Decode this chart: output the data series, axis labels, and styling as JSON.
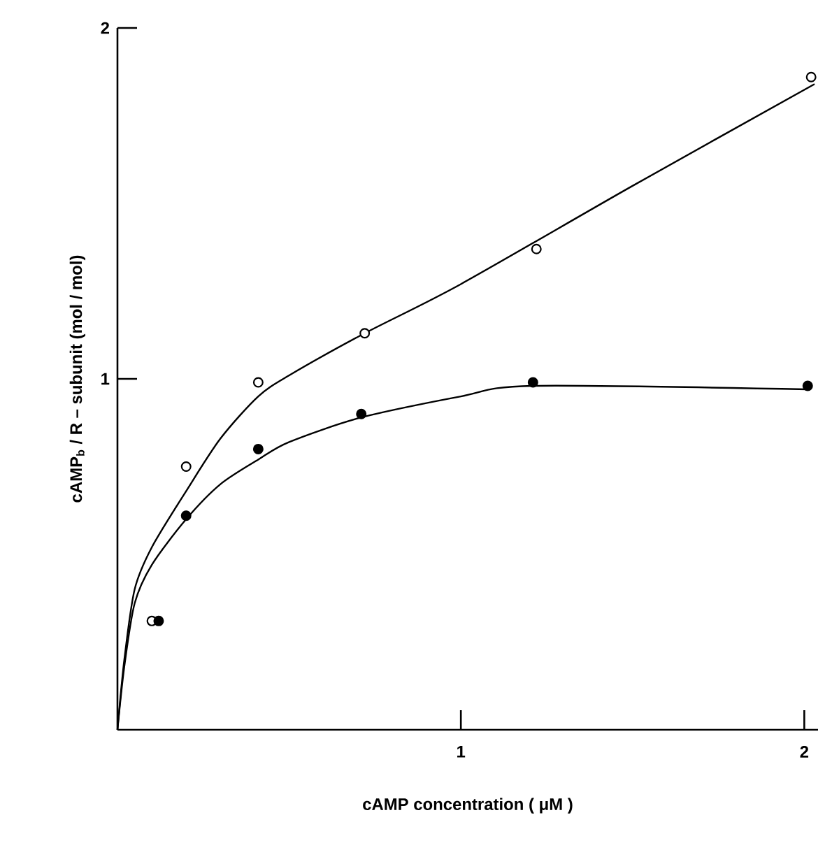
{
  "chart_data": {
    "type": "scatter",
    "xlabel": "cAMP  concentration    ( μM )",
    "ylabel": "cAMP$_{b}$ / R – subunit    (mol / mol)",
    "xlim": [
      0,
      2.04
    ],
    "ylim": [
      0,
      2
    ],
    "xticks": [
      1,
      2
    ],
    "yticks": [
      1,
      2
    ],
    "grid": false,
    "legend": false,
    "series": [
      {
        "type": "line",
        "color": "#000000",
        "marker": "none",
        "x": [
          0,
          0.02,
          0.05,
          0.1,
          0.2,
          0.3,
          0.41,
          0.5,
          0.72,
          1.0,
          1.5,
          2.03
        ],
        "values": [
          0,
          0.2,
          0.4,
          0.52,
          0.68,
          0.83,
          0.95,
          1.01,
          1.13,
          1.27,
          1.55,
          1.84
        ]
      },
      {
        "type": "line",
        "color": "#000000",
        "marker": "none",
        "x": [
          0,
          0.02,
          0.05,
          0.1,
          0.2,
          0.3,
          0.41,
          0.5,
          0.71,
          1.0,
          1.21,
          2.01
        ],
        "values": [
          0,
          0.18,
          0.36,
          0.47,
          0.6,
          0.7,
          0.77,
          0.82,
          0.89,
          0.95,
          0.98,
          0.97
        ]
      },
      {
        "color": "#ffffff",
        "marker": "circle",
        "x": [
          0.1,
          0.2,
          0.41,
          0.72,
          1.22,
          2.02
        ],
        "values": [
          0.31,
          0.75,
          0.99,
          1.13,
          1.37,
          1.86
        ]
      },
      {
        "color": "#000000",
        "marker": "circle",
        "x": [
          0.12,
          0.2,
          0.41,
          0.71,
          1.21,
          2.01
        ],
        "values": [
          0.31,
          0.61,
          0.8,
          0.9,
          0.99,
          0.98
        ]
      }
    ]
  }
}
